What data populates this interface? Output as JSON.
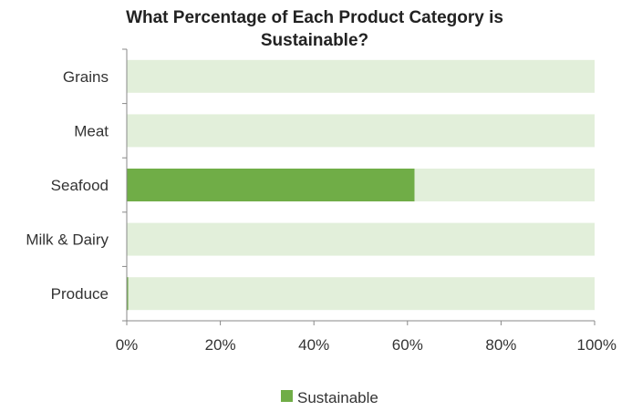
{
  "chart_data": {
    "type": "bar",
    "orientation": "horizontal",
    "stacked_background": true,
    "title_lines": [
      "What Percentage of Each Product Category is",
      "Sustainable?"
    ],
    "categories": [
      "Grains",
      "Meat",
      "Seafood",
      "Milk & Dairy",
      "Produce"
    ],
    "series": [
      {
        "name": "Sustainable",
        "values": [
          0,
          0,
          61.5,
          0,
          0.3
        ],
        "color": "#70ad47"
      }
    ],
    "background_color": "#e2efda",
    "xlim": [
      0,
      100
    ],
    "x_ticks": [
      "0%",
      "20%",
      "40%",
      "60%",
      "80%",
      "100%"
    ],
    "xlabel": "",
    "ylabel": "",
    "grid": false,
    "legend_position": "bottom"
  }
}
